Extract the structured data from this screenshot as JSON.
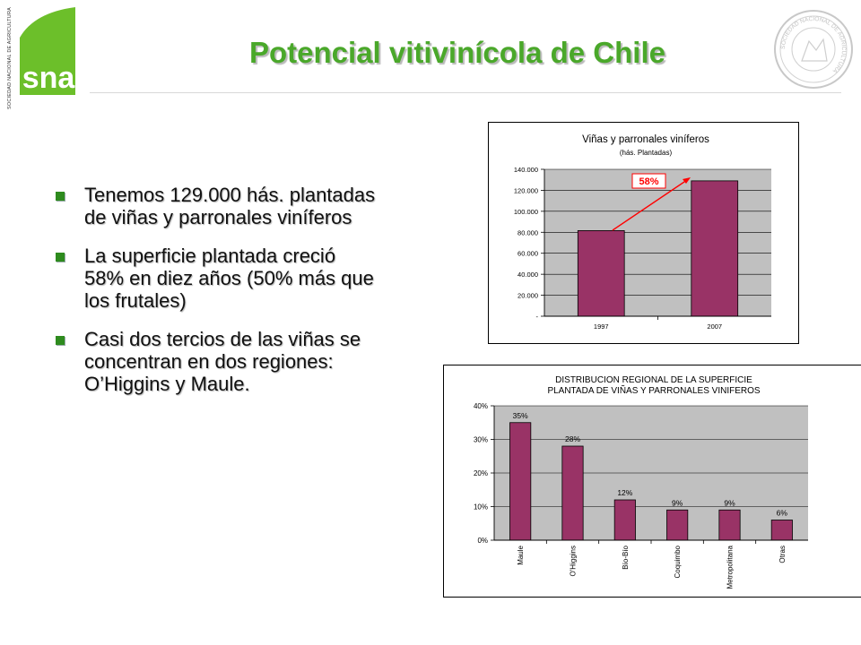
{
  "header": {
    "title": "Potencial vitivinícola de Chile",
    "logo_text": "sna",
    "logo_side_text": "SOCIEDAD NACIONAL DE AGRICULTURA",
    "seal_text": "SOCIEDAD NACIONAL DE AGRICULTURA"
  },
  "bullets": [
    "Tenemos 129.000 hás. plantadas de viñas y parronales viníferos",
    "La superficie plantada creció 58% en diez años (50% más que los frutales)",
    "Casi dos tercios de las viñas se concentran en dos regiones: O’Higgins y Maule."
  ],
  "colors": {
    "title": "#4aa82a",
    "bar": "#993366",
    "plot_bg": "#c0c0c0",
    "logo_green": "#6cbf2a",
    "growth_arrow": "#ff0000"
  },
  "chart_data": [
    {
      "type": "bar",
      "title": "Viñas y parronales viníferos",
      "subtitle": "(hás. Plantadas)",
      "categories": [
        "1997",
        "2007"
      ],
      "values": [
        81600,
        129000
      ],
      "ylim": [
        0,
        140000
      ],
      "yticks": [
        0,
        20000,
        40000,
        60000,
        80000,
        100000,
        120000,
        140000
      ],
      "ytick_labels": [
        "-",
        "20.000",
        "40.000",
        "60.000",
        "80.000",
        "100.000",
        "120.000",
        "140.000"
      ],
      "annotation": "58%",
      "grid": true
    },
    {
      "type": "bar",
      "title": "DISTRIBUCION REGIONAL DE LA SUPERFICIE PLANTADA DE VIÑAS Y PARRONALES VINIFEROS",
      "title_lines": [
        "DISTRIBUCION REGIONAL DE LA SUPERFICIE",
        "PLANTADA DE VIÑAS Y PARRONALES VINIFEROS"
      ],
      "categories": [
        "Maule",
        "O'Higgins",
        "Bío-Bío",
        "Coquimbo",
        "Metropolitana",
        "Otras"
      ],
      "values": [
        35,
        28,
        12,
        9,
        9,
        6
      ],
      "value_labels": [
        "35%",
        "28%",
        "12%",
        "9%",
        "9%",
        "6%"
      ],
      "ylim": [
        0,
        40
      ],
      "yticks": [
        0,
        10,
        20,
        30,
        40
      ],
      "ytick_labels": [
        "0%",
        "10%",
        "20%",
        "30%",
        "40%"
      ],
      "grid": true
    }
  ]
}
